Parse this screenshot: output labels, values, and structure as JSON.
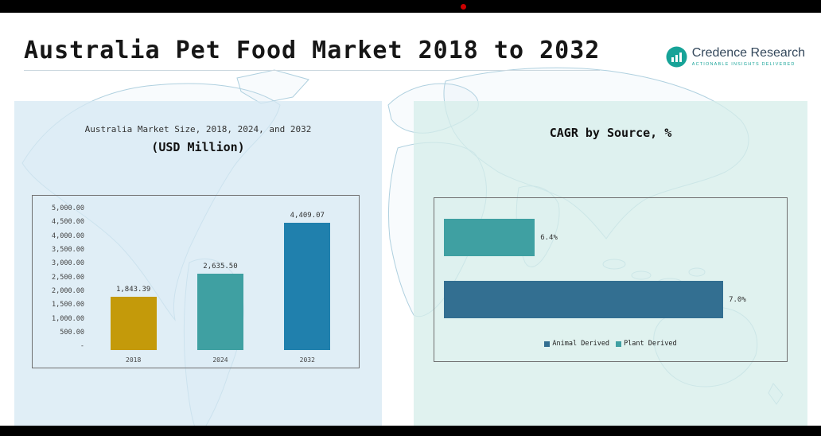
{
  "page": {
    "title": "Australia Pet Food Market 2018 to 2032"
  },
  "logo": {
    "name": "Credence Research",
    "tagline": "Actionable Insights Delivered",
    "accent_color": "#17a398"
  },
  "chart_data": [
    {
      "type": "bar",
      "title": "Australia Market Size, 2018, 2024, and 2032 (USD Million)",
      "title_line1": "Australia Market Size, 2018, 2024, and 2032",
      "title_line2": "(USD Million)",
      "categories": [
        "2018",
        "2024",
        "2032"
      ],
      "values": [
        1843.39,
        2635.5,
        4409.07
      ],
      "value_labels": [
        "1,843.39",
        "2,635.50",
        "4,409.07"
      ],
      "bar_colors": [
        "#c49a0a",
        "#3fa0a2",
        "#2080ad"
      ],
      "ylim": [
        0,
        5000
      ],
      "y_ticks": [
        "5,000.00",
        "4,500.00",
        "4,000.00",
        "3,500.00",
        "3,000.00",
        "2,500.00",
        "2,000.00",
        "1,500.00",
        "1,000.00",
        "500.00",
        "-"
      ],
      "grid": false,
      "legend_position": "none"
    },
    {
      "type": "bar",
      "orientation": "horizontal",
      "title": "CAGR by Source, %",
      "categories": [
        "Plant Derived",
        "Animal Derived"
      ],
      "values": [
        6.4,
        7.0
      ],
      "value_labels": [
        "6.4%",
        "7.0%"
      ],
      "bar_colors": [
        "#3fa0a2",
        "#336f91"
      ],
      "display_width_pct": [
        27,
        83
      ],
      "grid": false,
      "legend_position": "bottom-center",
      "legend": [
        {
          "label": "Animal Derived",
          "color": "#336f91"
        },
        {
          "label": "Plant Derived",
          "color": "#3fa0a2"
        }
      ]
    }
  ]
}
